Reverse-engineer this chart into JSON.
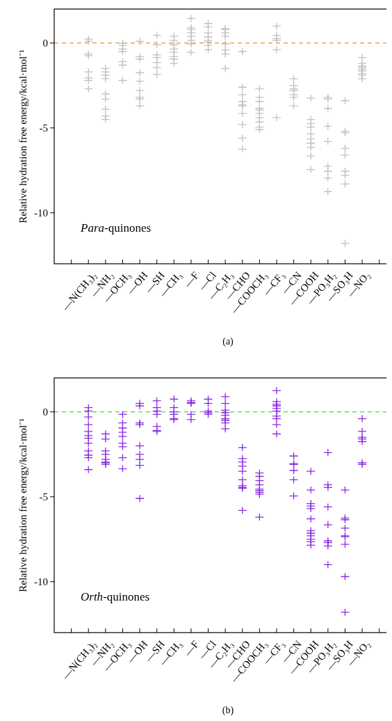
{
  "chart_data": [
    {
      "type": "scatter",
      "ylabel": "Relative hydration free energy/kcal·mol⁻¹",
      "annotations": [
        "Para-quinones",
        "(a)"
      ],
      "marker": "cross",
      "ylim": [
        -13,
        2
      ],
      "yticks": [
        -10,
        -5,
        0
      ],
      "grid": false,
      "categories": [
        "—N(CH₃)₂",
        "—NH₂",
        "—OCH₃",
        "—OH",
        "—SH",
        "—CH₃",
        "—F",
        "—Cl",
        "—C₂H₃",
        "—CHO",
        "—COOCH₃",
        "—CF₃",
        "—CN",
        "—COOH",
        "—PO₃H₂",
        "—SO₃H",
        "—NO₂"
      ],
      "ref_lines": [
        {
          "axis": "y",
          "value": 0,
          "color": "#f0a050",
          "line_style": "dashed"
        }
      ],
      "series": [
        {
          "color": "#c0c0c0",
          "x": [
            "—N(CH₃)₂",
            "—N(CH₃)₂",
            "—N(CH₃)₂",
            "—N(CH₃)₂",
            "—N(CH₃)₂",
            "—N(CH₃)₂",
            "—N(CH₃)₂",
            "—N(CH₃)₂",
            "—NH₂",
            "—NH₂",
            "—NH₂",
            "—NH₂",
            "—NH₂",
            "—NH₂",
            "—NH₂",
            "—NH₂",
            "—NH₂",
            "—OCH₃",
            "—OCH₃",
            "—OCH₃",
            "—OCH₃",
            "—OCH₃",
            "—OCH₃",
            "—OCH₃",
            "—OH",
            "—OH",
            "—OH",
            "—OH",
            "—OH",
            "—OH",
            "—OH",
            "—OH",
            "—OH",
            "—SH",
            "—SH",
            "—SH",
            "—SH",
            "—SH",
            "—SH",
            "—SH",
            "—CH₃",
            "—CH₃",
            "—CH₃",
            "—CH₃",
            "—CH₃",
            "—CH₃",
            "—CH₃",
            "—CH₃",
            "—F",
            "—F",
            "—F",
            "—F",
            "—F",
            "—F",
            "—F",
            "—F",
            "—Cl",
            "—Cl",
            "—Cl",
            "—Cl",
            "—Cl",
            "—Cl",
            "—Cl",
            "—Cl",
            "—C₂H₃",
            "—C₂H₃",
            "—C₂H₃",
            "—C₂H₃",
            "—C₂H₃",
            "—C₂H₃",
            "—C₂H₃",
            "—C₂H₃",
            "—CHO",
            "—CHO",
            "—CHO",
            "—CHO",
            "—CHO",
            "—CHO",
            "—CHO",
            "—CHO",
            "—CHO",
            "—CHO",
            "—COOCH₃",
            "—COOCH₃",
            "—COOCH₃",
            "—COOCH₃",
            "—COOCH₃",
            "—COOCH₃",
            "—COOCH₃",
            "—COOCH₃",
            "—COOCH₃",
            "—COOCH₃",
            "—CF₃",
            "—CF₃",
            "—CF₃",
            "—CF₃",
            "—CF₃",
            "—CF₃",
            "—CN",
            "—CN",
            "—CN",
            "—CN",
            "—CN",
            "—CN",
            "—CN",
            "—COOH",
            "—COOH",
            "—COOH",
            "—COOH",
            "—COOH",
            "—COOH",
            "—COOH",
            "—COOH",
            "—COOH",
            "—COOH",
            "—PO₃H₂",
            "—PO₃H₂",
            "—PO₃H₂",
            "—PO₃H₂",
            "—PO₃H₂",
            "—PO₃H₂",
            "—PO₃H₂",
            "—PO₃H₂",
            "—PO₃H₂",
            "—SO₃H",
            "—SO₃H",
            "—SO₃H",
            "—SO₃H",
            "—SO₃H",
            "—SO₃H",
            "—SO₃H",
            "—SO₃H",
            "—SO₃H",
            "—NO₂",
            "—NO₂",
            "—NO₂",
            "—NO₂",
            "—NO₂",
            "—NO₂",
            "—NO₂",
            "—NO₂",
            "—NO₂"
          ],
          "values": [
            0.23,
            0.1,
            -0.65,
            -0.75,
            -1.7,
            -2.05,
            -2.2,
            -2.7,
            -1.5,
            -1.7,
            -1.9,
            -2.1,
            -3.0,
            -3.3,
            -3.9,
            -4.3,
            -4.5,
            0.0,
            -0.15,
            -0.35,
            -0.5,
            -1.1,
            -1.3,
            -2.2,
            0.1,
            -0.8,
            -0.95,
            -1.75,
            -2.25,
            -2.8,
            -3.2,
            -3.3,
            -3.7,
            0.45,
            -0.1,
            -0.7,
            -0.85,
            -1.15,
            -1.45,
            -1.85,
            0.4,
            0.15,
            -0.1,
            -0.35,
            -0.55,
            -0.8,
            -0.95,
            -1.2,
            1.45,
            0.9,
            0.8,
            0.6,
            0.4,
            0.15,
            -0.05,
            -0.55,
            1.15,
            0.95,
            0.6,
            0.35,
            0.15,
            0.05,
            -0.15,
            -0.4,
            0.85,
            0.8,
            0.6,
            0.4,
            -0.05,
            -0.4,
            -0.65,
            -1.5,
            -0.5,
            -2.6,
            -3.05,
            -3.45,
            -3.65,
            -3.7,
            -4.15,
            -4.8,
            -5.6,
            -6.25,
            -2.7,
            -3.2,
            -3.45,
            -3.85,
            -3.95,
            -4.15,
            -4.4,
            -4.65,
            -4.95,
            -5.1,
            1.0,
            0.45,
            0.25,
            0.15,
            -0.4,
            -4.4,
            -2.1,
            -2.5,
            -2.7,
            -2.8,
            -3.05,
            -3.2,
            -3.7,
            -3.25,
            -4.5,
            -4.75,
            -4.95,
            -5.35,
            -5.65,
            -5.9,
            -6.15,
            -6.65,
            -7.45,
            -3.2,
            -3.3,
            -3.85,
            -4.9,
            -5.8,
            -7.25,
            -7.55,
            -7.95,
            -8.75,
            -3.4,
            -5.2,
            -5.3,
            -6.2,
            -6.6,
            -7.55,
            -7.8,
            -8.3,
            -11.8,
            -0.85,
            -1.2,
            -1.35,
            -1.45,
            -1.55,
            -1.65,
            -1.8,
            -1.9,
            -2.1
          ]
        }
      ]
    },
    {
      "type": "scatter",
      "ylabel": "Relative hydration free energy/kcal·mol⁻¹",
      "annotations": [
        "Orth-quinones",
        "(b)"
      ],
      "marker": "cross",
      "ylim": [
        -13,
        2
      ],
      "yticks": [
        -10,
        -5,
        0
      ],
      "grid": false,
      "categories": [
        "—N(CH₃)₂",
        "—NH₂",
        "—OCH₃",
        "—OH",
        "—SH",
        "—CH₃",
        "—F",
        "—Cl",
        "—C₂H₃",
        "—CHO",
        "—COOCH₃",
        "—CF₃",
        "—CN",
        "—COOH",
        "—PO₃H₂",
        "—SO₃H",
        "—NO₂"
      ],
      "ref_lines": [
        {
          "axis": "y",
          "value": 0,
          "color": "#66dd66",
          "line_style": "dashed"
        }
      ],
      "series": [
        {
          "color": "#8a2be2",
          "x": [
            "—N(CH₃)₂",
            "—N(CH₃)₂",
            "—N(CH₃)₂",
            "—N(CH₃)₂",
            "—N(CH₃)₂",
            "—N(CH₃)₂",
            "—N(CH₃)₂",
            "—N(CH₃)₂",
            "—N(CH₃)₂",
            "—N(CH₃)₂",
            "—N(CH₃)₂",
            "—N(CH₃)₂",
            "—NH₂",
            "—NH₂",
            "—NH₂",
            "—NH₂",
            "—NH₂",
            "—NH₂",
            "—NH₂",
            "—NH₂",
            "—OCH₃",
            "—OCH₃",
            "—OCH₃",
            "—OCH₃",
            "—OCH₃",
            "—OCH₃",
            "—OCH₃",
            "—OCH₃",
            "—OCH₃",
            "—OH",
            "—OH",
            "—OH",
            "—OH",
            "—OH",
            "—OH",
            "—OH",
            "—OH",
            "—OH",
            "—SH",
            "—SH",
            "—SH",
            "—SH",
            "—SH",
            "—SH",
            "—SH",
            "—CH₃",
            "—CH₃",
            "—CH₃",
            "—CH₃",
            "—CH₃",
            "—CH₃",
            "—F",
            "—F",
            "—F",
            "—F",
            "—F",
            "—Cl",
            "—Cl",
            "—Cl",
            "—Cl",
            "—Cl",
            "—C₂H₃",
            "—C₂H₃",
            "—C₂H₃",
            "—C₂H₃",
            "—C₂H₃",
            "—C₂H₃",
            "—C₂H₃",
            "—C₂H₃",
            "—C₂H₃",
            "—CHO",
            "—CHO",
            "—CHO",
            "—CHO",
            "—CHO",
            "—CHO",
            "—CHO",
            "—CHO",
            "—CHO",
            "—CHO",
            "—COOCH₃",
            "—COOCH₃",
            "—COOCH₃",
            "—COOCH₃",
            "—COOCH₃",
            "—COOCH₃",
            "—COOCH₃",
            "—COOCH₃",
            "—COOCH₃",
            "—CF₃",
            "—CF₃",
            "—CF₃",
            "—CF₃",
            "—CF₃",
            "—CF₃",
            "—CF₃",
            "—CF₃",
            "—CF₃",
            "—CF₃",
            "—CN",
            "—CN",
            "—CN",
            "—CN",
            "—CN",
            "—CN",
            "—COOH",
            "—COOH",
            "—COOH",
            "—COOH",
            "—COOH",
            "—COOH",
            "—COOH",
            "—COOH",
            "—COOH",
            "—COOH",
            "—COOH",
            "—COOH",
            "—PO₃H₂",
            "—PO₃H₂",
            "—PO₃H₂",
            "—PO₃H₂",
            "—PO₃H₂",
            "—PO₃H₂",
            "—PO₃H₂",
            "—PO₃H₂",
            "—PO₃H₂",
            "—SO₃H",
            "—SO₃H",
            "—SO₃H",
            "—SO₃H",
            "—SO₃H",
            "—SO₃H",
            "—SO₃H",
            "—SO₃H",
            "—SO₃H",
            "—NO₂",
            "—NO₂",
            "—NO₂",
            "—NO₂",
            "—NO₂",
            "—NO₂",
            "—NO₂"
          ],
          "values": [
            0.25,
            0.05,
            -0.3,
            -0.75,
            -1.15,
            -1.4,
            -1.55,
            -1.85,
            -2.3,
            -2.55,
            -2.7,
            -3.4,
            -1.3,
            -1.6,
            -2.3,
            -2.5,
            -2.8,
            -2.95,
            -3.0,
            -3.1,
            -0.15,
            -0.65,
            -0.95,
            -1.2,
            -1.45,
            -1.85,
            -2.05,
            -2.7,
            -3.35,
            0.5,
            0.35,
            -0.65,
            -0.75,
            -2.0,
            -2.5,
            -2.8,
            -3.15,
            -5.1,
            0.65,
            0.25,
            0.05,
            -0.15,
            -0.85,
            -1.1,
            -1.15,
            0.75,
            0.25,
            0.0,
            -0.15,
            -0.4,
            -0.45,
            0.65,
            0.55,
            0.5,
            -0.15,
            -0.45,
            0.75,
            0.5,
            0.05,
            -0.05,
            -0.15,
            0.9,
            0.5,
            0.1,
            -0.05,
            -0.2,
            -0.4,
            -0.5,
            -0.65,
            -1.0,
            -2.1,
            -2.75,
            -2.95,
            -3.2,
            -3.5,
            -4.0,
            -4.35,
            -4.45,
            -4.5,
            -5.8,
            -3.6,
            -3.8,
            -4.05,
            -4.3,
            -4.55,
            -4.65,
            -4.75,
            -4.85,
            -6.2,
            1.25,
            0.6,
            0.45,
            0.35,
            0.2,
            0.05,
            -0.25,
            -0.4,
            -0.75,
            -1.3,
            -2.6,
            -3.05,
            -3.1,
            -3.45,
            -4.0,
            -4.95,
            -3.5,
            -4.6,
            -5.4,
            -5.55,
            -5.7,
            -6.3,
            -7.0,
            -7.15,
            -7.3,
            -7.5,
            -7.65,
            -7.85,
            -2.4,
            -4.3,
            -4.45,
            -5.6,
            -6.65,
            -7.6,
            -7.7,
            -7.9,
            -9.0,
            -4.6,
            -6.25,
            -6.35,
            -6.85,
            -7.3,
            -7.35,
            -7.8,
            -9.7,
            -11.8,
            -0.4,
            -1.15,
            -1.5,
            -1.6,
            -1.75,
            -3.0,
            -3.1
          ]
        }
      ]
    }
  ]
}
